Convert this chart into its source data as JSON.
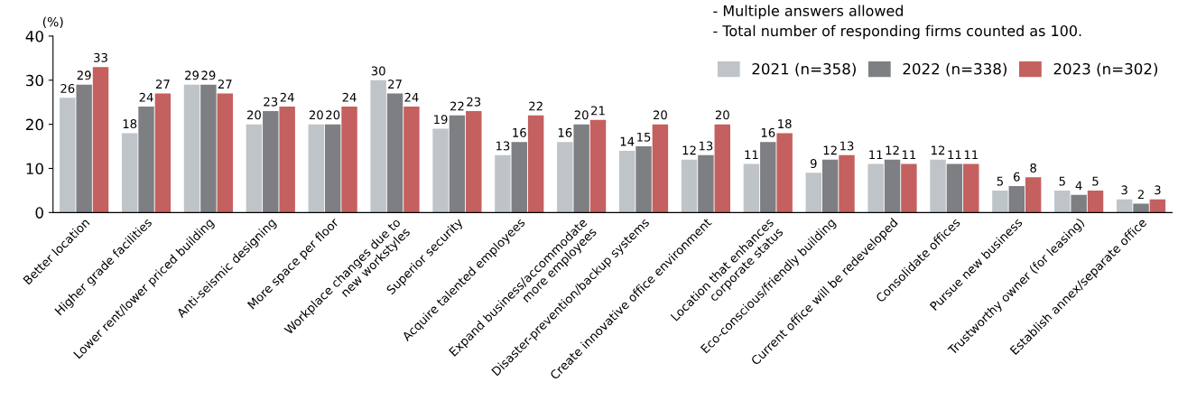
{
  "chart_data": {
    "type": "bar",
    "ylabel": "(%)",
    "annotations": [
      "- Multiple answers allowed",
      "- Total number of responding firms counted as 100."
    ],
    "categories": [
      "Better location",
      "Higher grade facilities",
      "Lower rent/lower priced building",
      "Anti-seismic designing",
      "More space per floor",
      "Workplace changes due to\nnew workstyles",
      "Superior security",
      "Acquire talented employees",
      "Expand business/accommodate\nmore employees",
      "Disaster-prevention/backup systems",
      "Create innovative office environment",
      "Location that enhances\ncorporate status",
      "Eco-conscious/friendly building",
      "Current office will be redeveloped",
      "Consolidate offices",
      "Pursue new business",
      "Trustworthy owner (for leasing)",
      "Establish annex/separate office"
    ],
    "series": [
      {
        "name": "2021 (n=358)",
        "color": "#bec4c8",
        "values": [
          26,
          18,
          29,
          20,
          20,
          30,
          19,
          13,
          16,
          14,
          12,
          11,
          9,
          11,
          12,
          5,
          5,
          3
        ]
      },
      {
        "name": "2022 (n=338)",
        "color": "#7e7f83",
        "values": [
          29,
          24,
          29,
          23,
          20,
          27,
          22,
          16,
          20,
          15,
          13,
          16,
          12,
          12,
          11,
          6,
          4,
          2
        ]
      },
      {
        "name": "2023 (n=302)",
        "color": "#c4605f",
        "values": [
          33,
          27,
          27,
          24,
          24,
          24,
          23,
          22,
          21,
          20,
          20,
          18,
          13,
          11,
          11,
          8,
          5,
          3
        ]
      }
    ],
    "ylim": [
      0,
      40
    ],
    "yticks": [
      0,
      10,
      20,
      30,
      40
    ],
    "data_labels": true,
    "grid": false,
    "legend": "top right"
  }
}
